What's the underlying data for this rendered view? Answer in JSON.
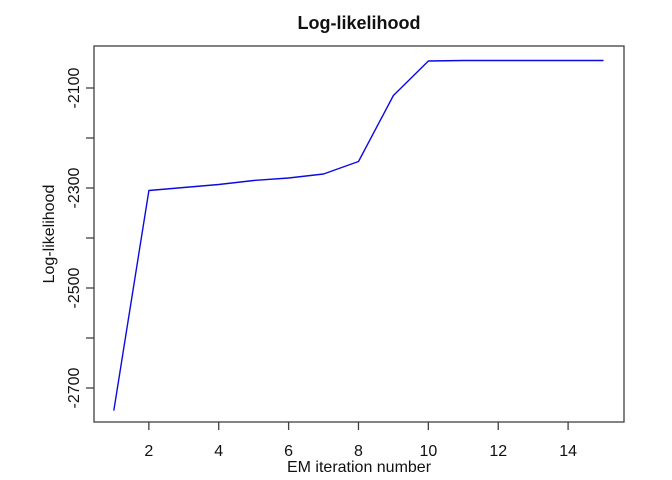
{
  "chart_data": {
    "type": "line",
    "title": "Log-likelihood",
    "xlabel": "EM iteration number",
    "ylabel": "Log-likelihood",
    "series": [
      {
        "name": "log-likelihood",
        "x": [
          1,
          2,
          3,
          4,
          5,
          6,
          7,
          8,
          9,
          10,
          11,
          12,
          13,
          14,
          15
        ],
        "y": [
          -2744,
          -2305,
          -2299,
          -2293,
          -2285,
          -2280,
          -2272,
          -2247,
          -2115,
          -2046,
          -2045,
          -2045,
          -2045,
          -2045,
          -2045
        ],
        "color": "#0b0be0"
      }
    ],
    "xlim": [
      0.43,
      15.6
    ],
    "ylim": [
      -2768,
      -2016
    ],
    "xticks": [
      {
        "value": 2,
        "label": "2"
      },
      {
        "value": 4,
        "label": "4"
      },
      {
        "value": 6,
        "label": "6"
      },
      {
        "value": 8,
        "label": "8"
      },
      {
        "value": 10,
        "label": "10"
      },
      {
        "value": 12,
        "label": "12"
      },
      {
        "value": 14,
        "label": "14"
      }
    ],
    "yticks": [
      {
        "value": -2700,
        "label": "-2700"
      },
      {
        "value": -2600,
        "label": ""
      },
      {
        "value": -2500,
        "label": "-2500"
      },
      {
        "value": -2400,
        "label": ""
      },
      {
        "value": -2300,
        "label": "-2300"
      },
      {
        "value": -2200,
        "label": ""
      },
      {
        "value": -2100,
        "label": "-2100"
      }
    ],
    "grid": false,
    "legend": "none"
  },
  "colors": {
    "background": "#ffffff",
    "axis": "#404040",
    "text": "#111111",
    "line": "#0b0be0"
  }
}
